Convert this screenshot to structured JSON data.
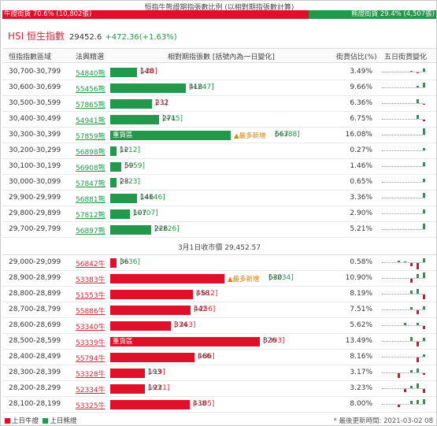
{
  "ratio": {
    "title": "恒指牛熊證期指張數比例 (以相對期指張數計算)",
    "bull_label": "牛證街貨 70.6% (10,802張)",
    "bear_label": "熊證街貨 29.4% (4,507張)",
    "bull_pct": 70.6,
    "bear_pct": 29.4
  },
  "index": {
    "name": "HSI 恒生指數",
    "value": "29452.6",
    "change": "+472.36(+1.63%)"
  },
  "headers": {
    "range": "恒指指數區域",
    "code": "法興精選",
    "contracts": "相對期指張數 [括號內為一日變化]",
    "pct": "街貨佔比(%)",
    "five_day": "五日街貨變化"
  },
  "bear_rows": [
    {
      "range": "30,700-30,799",
      "code": "54840熊",
      "bar_label": "",
      "contracts": 148,
      "change": "[-20]",
      "change_sign": "neg",
      "tag": "",
      "pct": "3.49%",
      "spark": [
        0,
        0,
        1,
        -1,
        4
      ]
    },
    {
      "range": "30,600-30,699",
      "code": "55456熊",
      "bar_label": "",
      "contracts": 418,
      "change": "[+247]",
      "change_sign": "pos",
      "tag": "",
      "pct": "9.66%",
      "spark": [
        0,
        0,
        0,
        2,
        6
      ]
    },
    {
      "range": "30,500-30,599",
      "code": "57865熊",
      "bar_label": "",
      "contracts": 232,
      "change": "[-1]",
      "change_sign": "neg",
      "tag": "",
      "pct": "6.36%",
      "spark": [
        0,
        0,
        0,
        5,
        -1
      ]
    },
    {
      "range": "30,400-30,499",
      "code": "54941熊",
      "bar_label": "",
      "contracts": 271,
      "change": "[+45]",
      "change_sign": "pos",
      "tag": "",
      "pct": "6.75%",
      "spark": [
        0,
        0,
        0,
        5,
        -2
      ]
    },
    {
      "range": "30,300-30,399",
      "code": "57859熊",
      "bar_label": "重貨區",
      "contracts": 667,
      "change": "[+388]",
      "change_sign": "pos",
      "tag": "▲最多新增",
      "pct": "16.08%",
      "spark": [
        0,
        0,
        0,
        0,
        8
      ]
    },
    {
      "range": "30,200-30,299",
      "code": "56898熊",
      "bar_label": "",
      "contracts": 12,
      "change": "[+12]",
      "change_sign": "pos",
      "tag": "",
      "pct": "0.27%",
      "spark": [
        0,
        0,
        0,
        0,
        3
      ]
    },
    {
      "range": "30,100-30,199",
      "code": "56908熊",
      "bar_label": "",
      "contracts": 59,
      "change": "[+59]",
      "change_sign": "pos",
      "tag": "",
      "pct": "1.46%",
      "spark": [
        0,
        0,
        0,
        0,
        5
      ]
    },
    {
      "range": "30,000-30,099",
      "code": "57847熊",
      "bar_label": "",
      "contracts": 23,
      "change": "[+23]",
      "change_sign": "pos",
      "tag": "",
      "pct": "0.65%",
      "spark": [
        0,
        0,
        0,
        0,
        4
      ]
    },
    {
      "range": "29,900-29,999",
      "code": "56881熊",
      "bar_label": "",
      "contracts": 146,
      "change": "[+146]",
      "change_sign": "pos",
      "tag": "",
      "pct": "3.36%",
      "spark": [
        0,
        0,
        0,
        0,
        6
      ]
    },
    {
      "range": "29,800-29,899",
      "code": "57812熊",
      "bar_label": "",
      "contracts": 107,
      "change": "[+107]",
      "change_sign": "pos",
      "tag": "",
      "pct": "2.90%",
      "spark": [
        0,
        0,
        0,
        0,
        5
      ]
    },
    {
      "range": "29,700-29,799",
      "code": "56897熊",
      "bar_label": "",
      "contracts": 226,
      "change": "[+226]",
      "change_sign": "pos",
      "tag": "",
      "pct": "5.21%",
      "spark": [
        0,
        0,
        0,
        0,
        7
      ]
    }
  ],
  "separator": "3月1日收市價 29,452.57",
  "bull_rows": [
    {
      "range": "29,000-29,099",
      "code": "56842牛",
      "bar_label": "",
      "contracts": 36,
      "change": "[+36]",
      "change_sign": "pos",
      "tag": "",
      "pct": "0.58%",
      "spark": [
        2,
        1,
        -4,
        -8,
        5
      ]
    },
    {
      "range": "28,900-28,999",
      "code": "53383牛",
      "bar_label": "",
      "contracts": 630,
      "change": "[+234]",
      "change_sign": "pos",
      "tag": "▲最多新增",
      "pct": "10.90%",
      "spark": [
        0,
        0,
        -5,
        5,
        7
      ]
    },
    {
      "range": "28,800-28,899",
      "code": "51553牛",
      "bar_label": "",
      "contracts": 458,
      "change": "[-612]",
      "change_sign": "neg",
      "tag": "",
      "pct": "8.19%",
      "spark": [
        0,
        0,
        4,
        6,
        -6
      ]
    },
    {
      "range": "28,700-28,799",
      "code": "55886牛",
      "bar_label": "",
      "contracts": 442,
      "change": "[-256]",
      "change_sign": "neg",
      "tag": "",
      "pct": "7.51%",
      "spark": [
        0,
        0,
        3,
        -5,
        4
      ]
    },
    {
      "range": "28,600-28,699",
      "code": "53340牛",
      "bar_label": "",
      "contracts": 334,
      "change": "[-263]",
      "change_sign": "neg",
      "tag": "",
      "pct": "5.62%",
      "spark": [
        0,
        3,
        0,
        3,
        -4
      ]
    },
    {
      "range": "28,500-28,599",
      "code": "53339牛",
      "bar_label": "重貨區",
      "contracts": 826,
      "change": "[-393]",
      "change_sign": "neg",
      "tag": "",
      "pct": "13.49%",
      "spark": [
        0,
        0,
        5,
        -6,
        4
      ]
    },
    {
      "range": "28,400-28,499",
      "code": "55794牛",
      "bar_label": "",
      "contracts": 466,
      "change": "[-86]",
      "change_sign": "neg",
      "tag": "",
      "pct": "8.16%",
      "spark": [
        0,
        0,
        0,
        -6,
        3
      ]
    },
    {
      "range": "28,300-28,399",
      "code": "53328牛",
      "bar_label": "",
      "contracts": 193,
      "change": "[-19]",
      "change_sign": "neg",
      "tag": "",
      "pct": "3.17%",
      "spark": [
        -6,
        0,
        3,
        5,
        -2
      ]
    },
    {
      "range": "28,200-28,299",
      "code": "52334牛",
      "bar_label": "",
      "contracts": 193,
      "change": "[-221]",
      "change_sign": "neg",
      "tag": "",
      "pct": "3.23%",
      "spark": [
        0,
        -4,
        3,
        6,
        -5
      ]
    },
    {
      "range": "28,100-28,199",
      "code": "53325牛",
      "bar_label": "",
      "contracts": 438,
      "change": "[-105]",
      "change_sign": "neg",
      "tag": "",
      "pct": "8.00%",
      "spark": [
        -3,
        0,
        4,
        5,
        6
      ]
    }
  ],
  "footer": {
    "bull_legend": "上日牛證",
    "bear_legend": "上日熊證",
    "updated": "* 最後更新時間: 2021-03-02 08"
  },
  "colors": {
    "bull": "#e0102a",
    "bear": "#21984a",
    "tag": "#e08000"
  },
  "icons": {
    "bull_legend_swatch": "red-square-icon",
    "bear_legend_swatch": "green-square-icon"
  }
}
